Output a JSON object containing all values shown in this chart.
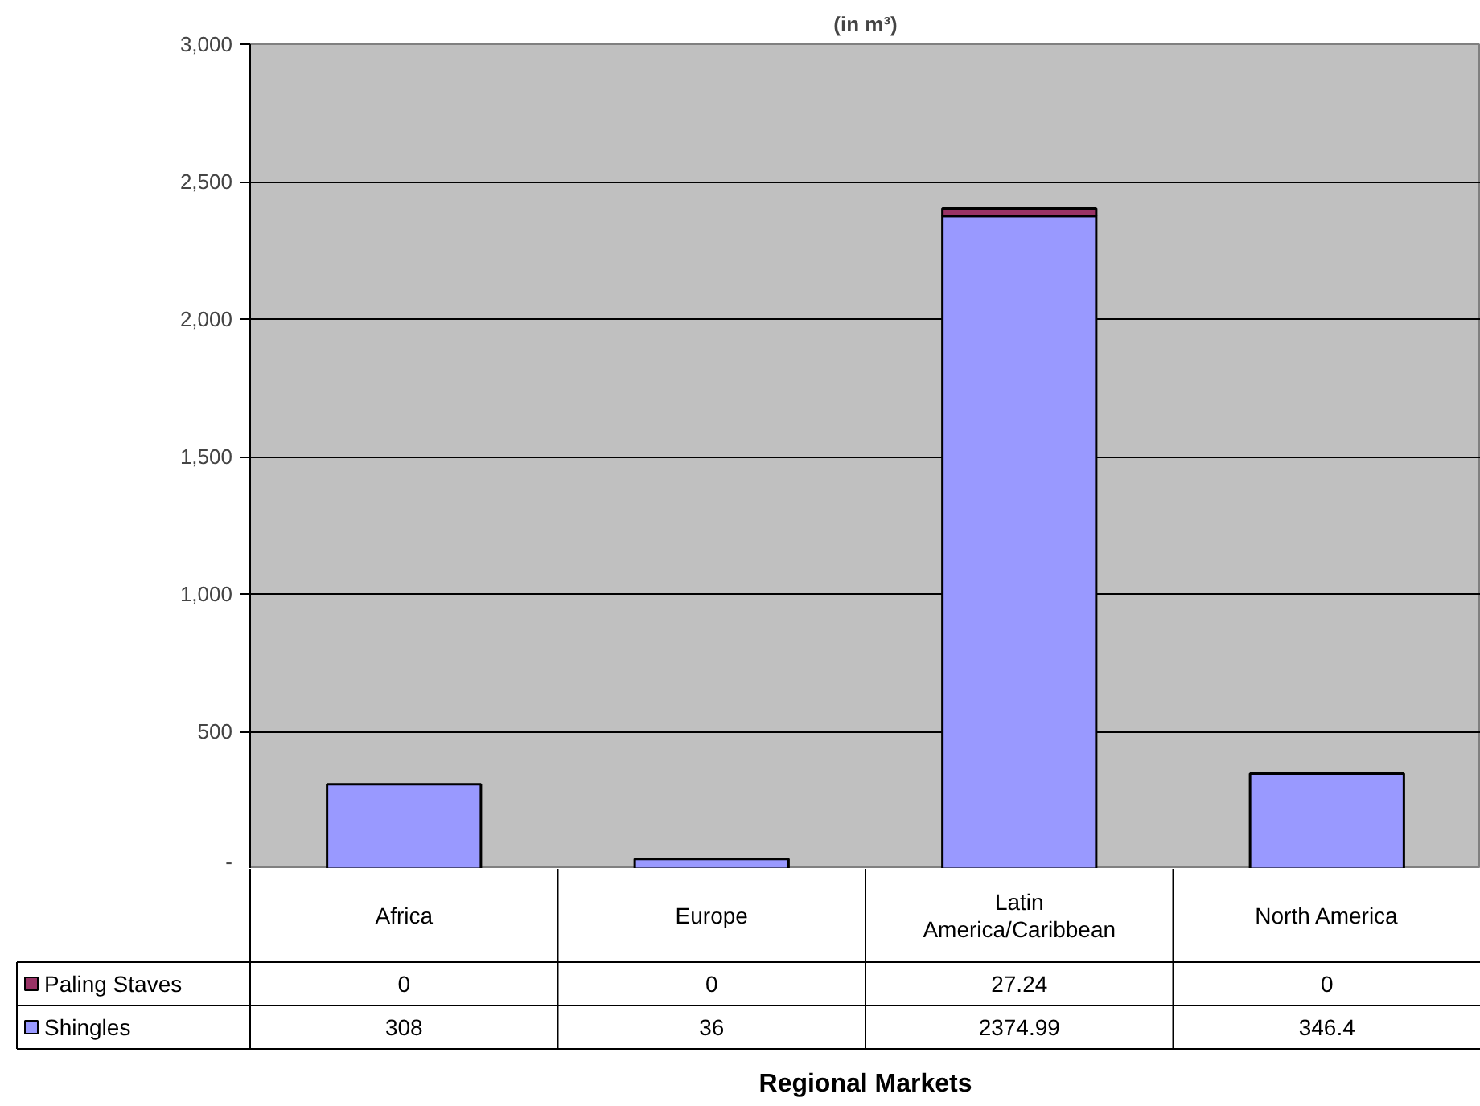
{
  "chart_data": {
    "type": "bar",
    "title": "(in m³)",
    "xlabel": "Regional Markets",
    "categories": [
      "Africa",
      "Europe",
      "Latin America/Caribbean",
      "North America"
    ],
    "stacked": true,
    "series": [
      {
        "name": "Shingles",
        "color": "#9999ff",
        "values": [
          308,
          36,
          2374.99,
          346.4
        ]
      },
      {
        "name": "Paling Staves",
        "color": "#993366",
        "values": [
          0,
          0,
          27.24,
          0
        ]
      }
    ],
    "ylim": [
      0,
      3000
    ],
    "yticks": [
      {
        "value": 0,
        "label": "-"
      },
      500,
      {
        "value": 1000,
        "label": "1,000"
      },
      {
        "value": 1500,
        "label": "1,500"
      },
      {
        "value": 2000,
        "label": "2,000"
      },
      {
        "value": 2500,
        "label": "2,500"
      },
      {
        "value": 3000,
        "label": "3,000"
      }
    ],
    "grid": "y",
    "legend": "bottom left",
    "data_labels": true
  }
}
